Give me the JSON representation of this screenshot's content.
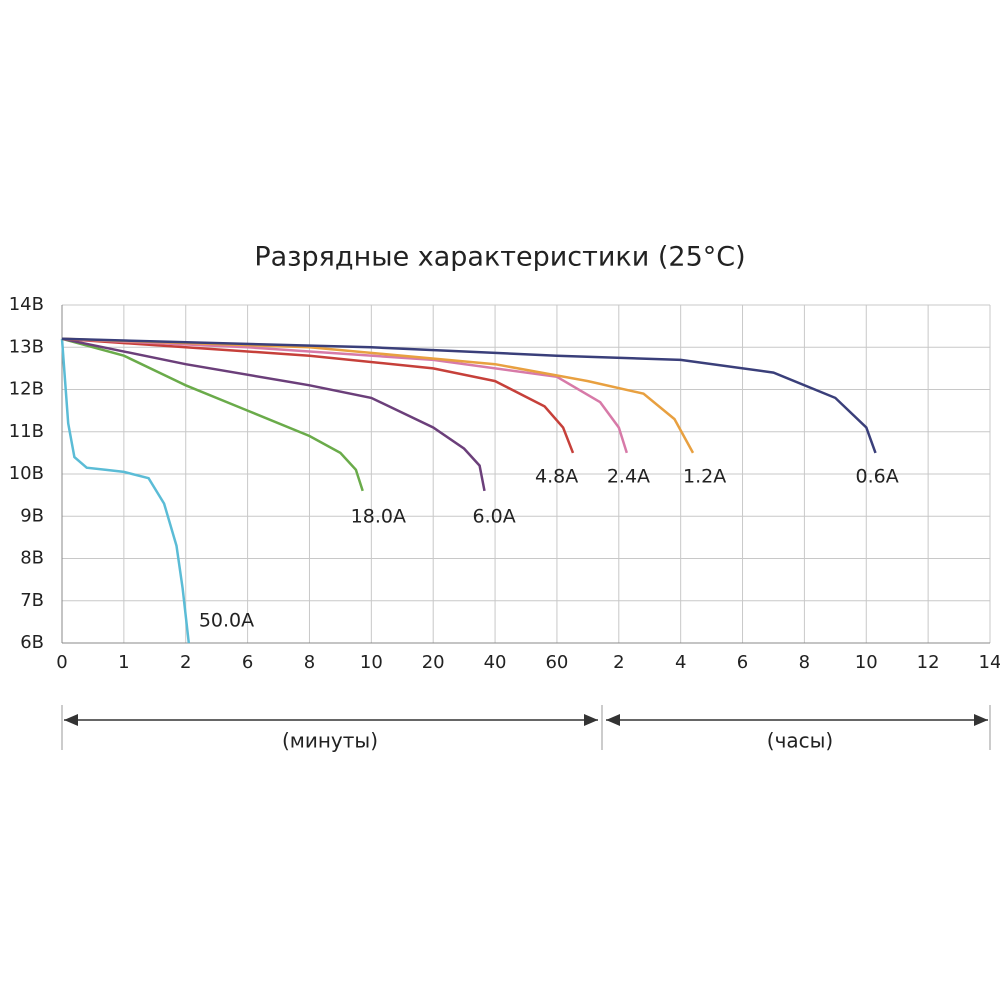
{
  "chart_data": {
    "type": "line",
    "title": "Разрядные характеристики (25°C)",
    "annotations": [
      "(минуты)",
      "(часы)"
    ],
    "xlim": [
      0,
      15
    ],
    "xticks": [
      {
        "value": 0,
        "label": "0"
      },
      {
        "value": 1,
        "label": "1"
      },
      {
        "value": 2,
        "label": "2"
      },
      {
        "value": 3,
        "label": "6"
      },
      {
        "value": 4,
        "label": "8"
      },
      {
        "value": 5,
        "label": "10"
      },
      {
        "value": 6,
        "label": "20"
      },
      {
        "value": 7,
        "label": "40"
      },
      {
        "value": 8,
        "label": "60"
      },
      {
        "value": 9,
        "label": "2"
      },
      {
        "value": 10,
        "label": "4"
      },
      {
        "value": 11,
        "label": "6"
      },
      {
        "value": 12,
        "label": "8"
      },
      {
        "value": 13,
        "label": "10"
      },
      {
        "value": 14,
        "label": "12"
      },
      {
        "value": 15,
        "label": "14"
      }
    ],
    "ylim": [
      6,
      14
    ],
    "yticks": [
      {
        "value": 6,
        "label": "6В"
      },
      {
        "value": 7,
        "label": "7В"
      },
      {
        "value": 8,
        "label": "8В"
      },
      {
        "value": 9,
        "label": "9В"
      },
      {
        "value": 10,
        "label": "10В"
      },
      {
        "value": 11,
        "label": "11В"
      },
      {
        "value": 12,
        "label": "12В"
      },
      {
        "value": 13,
        "label": "13В"
      },
      {
        "value": 14,
        "label": "14В"
      }
    ],
    "grid": true,
    "series": [
      {
        "name": "50.0A",
        "color": "#5bbcd6",
        "x": [
          0,
          0.05,
          0.1,
          0.2,
          0.4,
          0.7,
          1.0,
          1.4,
          1.65,
          1.85,
          1.95,
          2.05
        ],
        "values": [
          13.2,
          12.2,
          11.2,
          10.4,
          10.15,
          10.1,
          10.05,
          9.9,
          9.3,
          8.3,
          7.3,
          6.0
        ]
      },
      {
        "name": "18.0A",
        "color": "#6aab4a",
        "x": [
          0,
          1,
          2,
          3,
          4,
          4.5,
          4.75,
          4.86
        ],
        "values": [
          13.2,
          12.8,
          12.1,
          11.5,
          10.9,
          10.5,
          10.1,
          9.6
        ]
      },
      {
        "name": "6.0A",
        "color": "#6b3f7a",
        "x": [
          0,
          2,
          4,
          5,
          6,
          6.5,
          6.75,
          6.83
        ],
        "values": [
          13.2,
          12.6,
          12.1,
          11.8,
          11.1,
          10.6,
          10.2,
          9.6
        ]
      },
      {
        "name": "4.8A",
        "color": "#c6403a",
        "x": [
          0,
          2,
          4,
          6,
          7,
          7.8,
          8.1,
          8.26
        ],
        "values": [
          13.2,
          13.0,
          12.8,
          12.5,
          12.2,
          11.6,
          11.1,
          10.5
        ]
      },
      {
        "name": "2.4A",
        "color": "#d77aa8",
        "x": [
          0,
          3,
          6,
          8,
          8.7,
          9.0,
          9.13
        ],
        "values": [
          13.2,
          13.0,
          12.7,
          12.3,
          11.7,
          11.1,
          10.5
        ]
      },
      {
        "name": "1.2A",
        "color": "#e8a040",
        "x": [
          0,
          4,
          7,
          8.5,
          9.4,
          9.9,
          10.2
        ],
        "values": [
          13.2,
          13.0,
          12.6,
          12.2,
          11.9,
          11.3,
          10.5
        ]
      },
      {
        "name": "0.6A",
        "color": "#3a3f7a",
        "x": [
          0,
          5,
          8,
          10,
          11.5,
          12.5,
          13,
          13.15
        ],
        "values": [
          13.2,
          13.0,
          12.8,
          12.7,
          12.4,
          11.8,
          11.1,
          10.5
        ]
      }
    ]
  }
}
